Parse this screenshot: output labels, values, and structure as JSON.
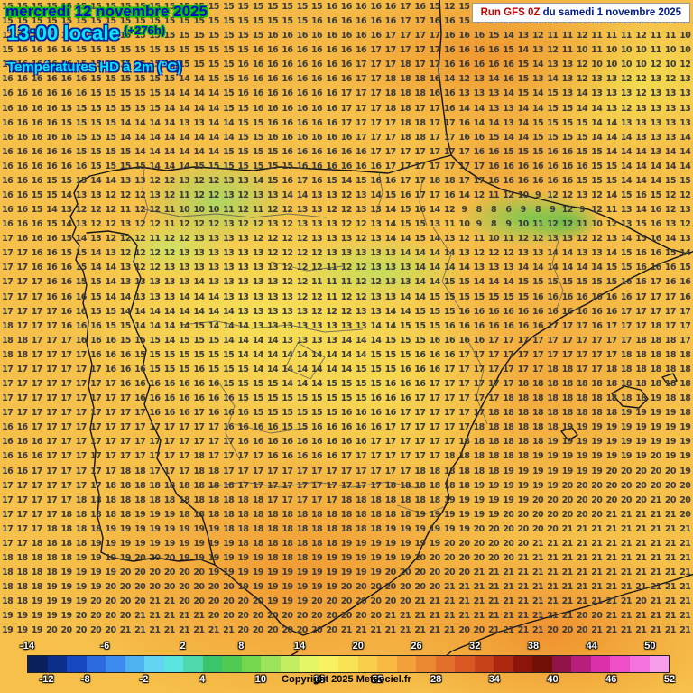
{
  "header": {
    "date_line": "mercredi 12 novembre 2025",
    "time_line": "13:00 locale",
    "hour_offset": "(+276h)",
    "parameter": "Températures HD à 2m (°C)"
  },
  "run": {
    "prefix": "Run GFS 0Z",
    "date": "du samedi 1 novembre 2025"
  },
  "footer": {
    "copyright": "Copyright 2025 Meteociel.fr"
  },
  "colorbar": {
    "min": -14,
    "max": 52,
    "top_labels": [
      -14,
      -6,
      2,
      8,
      14,
      20,
      26,
      32,
      38,
      44,
      50
    ],
    "bottom_labels": [
      -12,
      -8,
      -2,
      4,
      10,
      16,
      22,
      28,
      34,
      40,
      46,
      52
    ],
    "colors": [
      "#08205c",
      "#0c2f8c",
      "#1747c0",
      "#2c6ae0",
      "#3b8cee",
      "#4fb2f0",
      "#63d4f2",
      "#5ce4e0",
      "#4ed8ac",
      "#3cc46a",
      "#4fca52",
      "#74d84e",
      "#9ce45a",
      "#c4ee62",
      "#e4f666",
      "#f8f262",
      "#f8e354",
      "#f8cf4a",
      "#f8ba42",
      "#f2a03a",
      "#ea8832",
      "#e2702a",
      "#d85822",
      "#c64018",
      "#ac2810",
      "#8c140a",
      "#701006",
      "#901448",
      "#b81e7c",
      "#da30aa",
      "#ee4ec8",
      "#f672dc",
      "#f89cec"
    ]
  },
  "map": {
    "grid_rows": [
      "15 15 15 15 15 15 15 15 15 15 15 15 15 15 15 15 15 15 15 15 15 15 16 16 16 16 16 17 16 15 12 15 12 13 12 12 13 13 13 12 13 12 13 13 12 13 12",
      "15 15 15 15 15 15 15 15 15 15 15 15 15 15 15 15 15 15 15 15 15 16 16 16 16 16 16 17 17 16 16 15 14 13 12 12 11 12 12 13 12 12 13 12 11 11 12",
      "12 13 14 15 15 15 15 15 15 15 15 15 15 15 15 15 15 15 16 16 16 16 16 16 16 16 17 17 17 17 16 16 16 15 14 13 12 11 11 12 11 11 11 12 11 11 10",
      "15 16 16 16 16 15 15 15 15 15 15 15 15 15 15 15 15 16 16 16 16 16 16 16 16 17 17 17 17 17 16 16 16 16 15 14 13 12 11 10 11 10 10 10 11 10 10",
      "16 16 16 16 16 15 15 15 15 15 15 15 15 15 15 15 16 16 16 16 16 16 16 16 17 17 17 18 17 17 16 16 16 16 16 15 14 13 13 12 10 10 10 10 12 10 12",
      "16 16 16 16 16 16 15 15 15 15 15 15 14 14 15 15 16 16 16 16 16 16 16 16 17 17 18 18 18 16 14 12 13 14 16 15 13 14 13 12 13 13 12 12 13 12 13",
      "16 16 16 16 16 16 15 15 15 15 15 14 14 14 14 15 16 16 16 16 16 16 16 17 17 17 18 18 18 16 16 13 13 13 14 15 14 15 13 14 13 13 13 12 13 13 13",
      "16 16 16 16 15 15 15 15 15 15 15 14 14 14 14 15 15 16 16 16 16 16 16 17 17 17 18 18 17 17 16 14 14 13 13 14 14 15 15 14 14 13 12 13 13 13 13",
      "16 16 16 16 15 15 15 15 14 14 14 14 13 13 14 14 15 15 16 16 16 16 16 17 17 17 17 18 18 17 17 16 14 14 13 14 15 15 15 15 14 14 13 13 13 13 13",
      "16 16 16 16 16 15 15 15 14 14 14 14 14 14 14 14 15 15 16 16 16 16 16 16 17 17 17 18 18 17 17 16 16 15 14 14 15 15 15 15 14 14 14 13 13 13 14",
      "16 16 16 16 16 15 15 15 15 14 14 14 14 14 14 15 15 15 15 16 16 16 16 16 16 17 17 17 17 17 17 17 16 16 15 15 15 16 16 15 15 14 14 14 13 14 14",
      "16 16 16 16 16 16 15 15 15 15 14 14 14 15 15 15 15 15 15 15 16 16 16 16 16 16 17 17 17 17 17 17 17 16 16 16 16 16 16 16 15 15 14 14 14 14 14",
      "16 16 16 15 15 15 14 14 13 13 12 12 13 12 12 13 13 14 15 16 17 16 15 14 15 16 16 17 17 18 18 17 17 16 16 16 16 16 16 15 15 15 14 14 14 15 15",
      "16 16 15 15 14 13 13 12 12 12 13 12 11 12 12 13 12 13 13 14 14 13 13 12 13 14 15 16 17 17 16 14 12 11 12 10 9 12 12 13 12 14 15 16 15 12 12",
      "16 16 15 14 13 12 12 12 11 12 12 11 10 10 10 11 12 11 12 12 13 13 12 12 13 13 14 15 16 14 12 9 8 8 6 9 8 9 12 9 12 11 13 14 16 12 13",
      "16 16 16 15 14 13 12 12 13 12 12 11 12 12 12 13 12 12 13 12 13 13 13 12 12 13 14 15 15 13 11 10 9 8 9 10 11 12 12 11 10 12 13 15 16 13 12",
      "17 16 16 16 15 14 13 12 12 12 11 12 12 13 13 13 13 12 12 12 12 13 13 13 12 13 14 14 15 14 13 12 11 10 11 12 12 13 13 12 12 13 14 15 16 14 13",
      "17 17 16 16 15 15 14 13 12 12 12 12 13 13 13 13 13 13 12 12 12 12 13 13 13 13 13 14 14 14 14 13 12 12 12 13 13 14 14 13 13 14 15 16 16 15 14",
      "17 17 16 16 16 15 14 14 13 12 12 13 13 13 13 13 13 13 13 12 12 12 11 12 12 13 13 13 14 14 14 14 13 13 13 14 14 14 14 14 14 15 15 16 16 16 15",
      "17 17 17 16 16 15 15 14 13 13 13 13 13 14 13 13 13 13 13 12 12 11 11 11 12 12 13 13 14 14 15 15 14 14 14 15 15 15 15 15 15 15 16 16 17 16 16",
      "17 17 17 16 16 16 15 14 14 13 13 13 14 14 14 13 13 13 13 13 12 12 11 12 12 13 13 14 14 15 15 15 15 15 15 15 16 16 16 16 16 16 16 17 17 17 16",
      "17 17 17 17 16 16 15 15 14 14 14 14 14 14 14 14 13 13 13 13 13 12 12 12 13 13 14 14 15 15 15 16 16 16 16 16 16 16 16 16 16 16 17 17 17 17 17",
      "18 17 17 17 16 16 16 15 15 14 14 14 14 15 14 14 14 13 13 13 13 13 13 13 13 14 14 15 15 15 16 16 16 16 16 16 16 17 17 17 16 17 17 17 18 17 17",
      "18 18 17 17 17 16 16 16 15 15 15 14 15 15 15 14 14 14 14 13 13 13 13 14 14 14 15 15 15 16 16 16 16 17 17 17 17 17 17 17 17 17 17 18 18 18 17",
      "18 18 17 17 17 17 16 16 16 15 15 15 15 15 15 15 14 14 14 14 14 14 14 14 14 15 15 15 16 16 16 17 17 17 17 17 17 17 17 17 17 17 18 18 18 18 18",
      "17 17 17 17 17 17 17 16 16 16 15 15 15 16 15 15 15 14 14 14 14 14 14 14 15 15 15 16 16 16 17 17 17 17 17 17 17 18 18 17 17 18 18 18 18 18 18",
      "17 17 17 17 17 17 17 17 16 16 16 16 16 16 16 15 15 15 15 14 14 14 15 15 15 15 16 16 16 17 17 17 17 17 17 18 18 18 18 18 18 18 18 18 18 18 18",
      "17 17 17 17 17 17 17 17 17 16 16 16 16 16 16 16 15 15 15 15 15 15 15 15 15 16 16 16 17 17 17 17 17 17 18 18 18 18 18 18 18 18 18 18 19 18 18",
      "17 17 17 17 17 17 17 17 17 17 16 16 16 17 16 16 16 15 15 15 15 15 15 16 16 16 16 17 17 17 17 17 17 18 18 18 18 18 18 18 18 18 19 19 19 19 18",
      "16 16 17 17 17 17 17 17 17 17 17 17 17 17 17 16 16 16 16 15 15 16 16 16 16 16 17 17 17 17 17 17 18 18 18 18 18 18 19 19 19 19 19 19 19 19 19",
      "16 16 16 17 17 17 17 17 17 17 17 17 17 17 17 17 16 16 16 16 16 16 16 16 16 17 17 17 17 17 17 18 18 18 18 18 18 19 19 19 19 19 19 19 19 19 19",
      "16 16 16 17 17 17 17 17 17 17 17 17 17 18 17 17 17 17 16 16 16 16 16 17 17 17 17 17 17 17 18 18 18 18 18 18 19 19 19 19 19 19 19 19 20 19 19",
      "16 16 17 17 17 17 17 17 18 18 17 17 17 18 18 17 17 17 17 17 17 17 17 17 17 17 17 17 18 18 18 18 18 18 19 19 19 19 19 19 19 20 20 20 20 20 19",
      "17 17 17 17 17 17 17 18 18 18 18 18 18 18 18 18 17 17 17 17 17 17 17 17 17 17 18 18 18 18 18 18 19 19 19 19 19 19 20 20 20 20 20 20 20 20 20",
      "17 17 17 17 17 18 18 18 18 18 18 18 18 18 18 18 18 18 17 17 17 17 17 18 18 18 18 18 18 18 19 19 19 19 19 19 20 20 20 20 20 20 20 20 21 20 20",
      "17 17 17 17 18 18 18 18 18 19 19 19 18 18 18 18 18 18 18 18 18 18 18 18 18 18 18 18 19 19 19 19 19 19 20 20 20 20 20 20 20 21 21 21 21 21 20",
      "17 17 17 18 18 18 18 19 19 19 19 19 19 19 19 18 18 18 18 18 18 18 18 18 18 18 19 19 19 19 19 19 20 20 20 20 20 20 21 21 21 21 21 21 21 21 21",
      "17 17 18 18 18 18 19 19 19 19 19 19 19 19 19 19 18 18 18 18 18 18 18 19 19 19 19 19 19 19 20 20 20 20 20 20 21 21 21 21 21 21 21 21 21 21 21",
      "18 18 18 18 18 19 19 19 19 20 20 20 19 19 19 19 19 19 18 18 18 19 19 19 19 19 19 19 20 20 20 20 20 20 20 21 21 21 21 21 21 21 21 21 21 21 21",
      "18 18 18 18 19 19 19 19 20 20 20 20 20 20 19 19 19 19 19 19 19 19 19 19 19 19 20 20 20 20 20 20 21 21 21 21 21 21 21 21 21 21 21 21 21 21 21",
      "18 18 18 19 19 19 19 20 20 20 20 20 20 20 20 20 19 19 19 19 19 19 19 20 20 20 20 20 20 20 21 21 21 21 21 21 21 21 21 21 21 21 21 21 21 21 21",
      "18 18 19 19 19 19 20 20 20 20 21 21 20 20 20 20 20 20 19 19 19 20 20 20 20 20 20 20 21 21 21 21 21 21 21 21 21 21 21 21 21 21 21 20 21 21 21",
      "19 19 19 19 19 20 20 20 20 21 21 21 21 21 20 20 20 20 20 20 20 20 20 20 20 20 21 21 21 21 21 21 21 21 21 21 21 21 21 20 20 21 21 21 21 21 21",
      "19 19 19 20 20 20 20 20 21 21 21 21 21 21 21 21 20 20 20 20 20 20 20 21 21 21 21 21 21 21 21 20 20 21 21 21 21 20 20 20 21 21 21 21 21 21 21"
    ]
  }
}
